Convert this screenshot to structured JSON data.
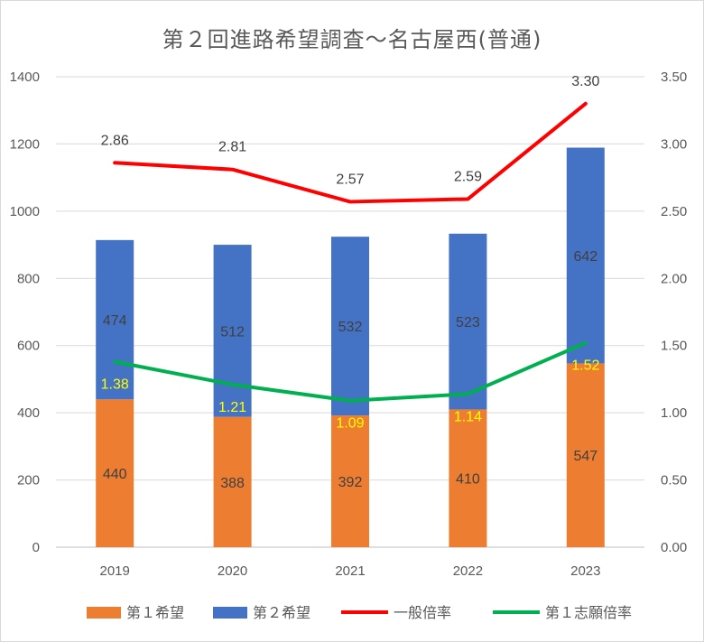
{
  "chart_data": {
    "type": "bar",
    "title": "第２回進路希望調査～名古屋西(普通)",
    "categories": [
      "2019",
      "2020",
      "2021",
      "2022",
      "2023"
    ],
    "series": [
      {
        "name": "第１希望",
        "kind": "stacked-bar",
        "axis": "left",
        "color": "#ed7d31",
        "label_color": "#404040",
        "values": [
          440,
          388,
          392,
          410,
          547
        ]
      },
      {
        "name": "第２希望",
        "kind": "stacked-bar",
        "axis": "left",
        "color": "#4472c4",
        "label_color": "#404040",
        "values": [
          474,
          512,
          532,
          523,
          642
        ]
      },
      {
        "name": "一般倍率",
        "kind": "line",
        "axis": "right",
        "color": "#ff0000",
        "label_color": "#404040",
        "values": [
          2.86,
          2.81,
          2.57,
          2.59,
          3.3
        ],
        "labels": [
          "2.86",
          "2.81",
          "2.57",
          "2.59",
          "3.30"
        ]
      },
      {
        "name": "第１志願倍率",
        "kind": "line",
        "axis": "right",
        "color": "#00b050",
        "label_color": "#ffff00",
        "values": [
          1.38,
          1.21,
          1.09,
          1.14,
          1.52
        ],
        "labels": [
          "1.38",
          "1.21",
          "1.09",
          "1.14",
          "1.52"
        ]
      }
    ],
    "y_left": {
      "min": 0,
      "max": 1400,
      "ticks": [
        "0",
        "200",
        "400",
        "600",
        "800",
        "1000",
        "1200",
        "1400"
      ]
    },
    "y_right": {
      "min": 0,
      "max": 3.5,
      "ticks": [
        "0.00",
        "0.50",
        "1.00",
        "1.50",
        "2.00",
        "2.50",
        "3.00",
        "3.50"
      ]
    },
    "grid": true,
    "legend_position": "bottom"
  }
}
